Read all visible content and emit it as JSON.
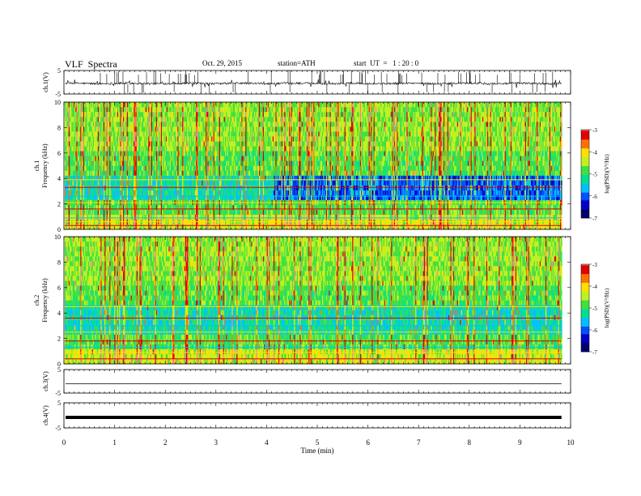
{
  "header": {
    "title": "VLF  Spectra",
    "date": "Oct. 29, 2015",
    "station": "station=ATH",
    "start": "start  UT  =   1 : 20 : 0"
  },
  "chart_data": [
    {
      "type": "line",
      "ylabel": "ch.1(V)",
      "ylim": [
        -5,
        5
      ],
      "yticks": [
        "5",
        "-5"
      ],
      "description_level": "waveform with spikes around -0.5"
    },
    {
      "type": "heatmap",
      "ylabel_channel": "ch.1",
      "ylabel": "Frequency  (kHz)",
      "ylim": [
        0,
        10
      ],
      "yticks": [
        "0",
        "2",
        "4",
        "6",
        "8",
        "10"
      ],
      "colorbar": {
        "label": "log(PSD)(V²/Hz)",
        "range": [
          -7,
          -3
        ],
        "ticks": [
          "-3",
          "-4",
          "-5",
          "-6",
          "-7"
        ]
      }
    },
    {
      "type": "heatmap",
      "ylabel_channel": "ch.2",
      "ylabel": "Frequency  (kHz)",
      "ylim": [
        0,
        10
      ],
      "yticks": [
        "0",
        "2",
        "4",
        "6",
        "8",
        "10"
      ],
      "colorbar": {
        "label": "log(PSD)(V²/Hz)",
        "range": [
          -7,
          -3
        ],
        "ticks": [
          "-3",
          "-4",
          "-5",
          "-6",
          "-7"
        ]
      }
    },
    {
      "type": "line",
      "ylabel": "ch.3(V)",
      "ylim": [
        -5,
        5
      ],
      "yticks": [
        "5",
        "-5"
      ],
      "level": -1
    },
    {
      "type": "line",
      "ylabel": "ch.4(V)",
      "ylim": [
        -5,
        5
      ],
      "yticks": [
        "5",
        "-5"
      ],
      "level": -0.8
    }
  ],
  "xaxis": {
    "label": "Time  (min)",
    "range": [
      0,
      10
    ],
    "ticks": [
      "0",
      "1",
      "2",
      "3",
      "4",
      "5",
      "6",
      "7",
      "8",
      "9",
      "10"
    ],
    "data_end": 9.82
  },
  "colors": {
    "colormap": [
      "#000070",
      "#0000c8",
      "#0050ff",
      "#00c0ff",
      "#00e090",
      "#40e040",
      "#c0f020",
      "#ffe000",
      "#ff7000",
      "#e00000",
      "#ff8080",
      "#ffffff"
    ]
  }
}
